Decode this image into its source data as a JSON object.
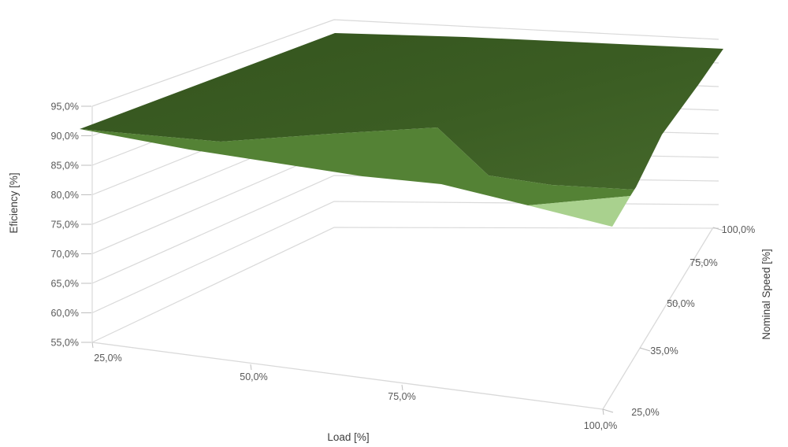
{
  "chart_data": {
    "type": "surface",
    "description": "3D surface chart of motor efficiency versus load and nominal speed",
    "value_axis": {
      "title": "Eficiency [%]",
      "ticks": [
        "55,0%",
        "60,0%",
        "65,0%",
        "70,0%",
        "75,0%",
        "80,0%",
        "85,0%",
        "90,0%",
        "95,0%"
      ],
      "min": 55,
      "max": 95,
      "major_unit": 5
    },
    "load_axis": {
      "title": "Load [%]",
      "ticks": [
        "25,0%",
        "50,0%",
        "75,0%",
        "100,0%"
      ],
      "values_pct": [
        25,
        50,
        75,
        100
      ]
    },
    "speed_axis": {
      "title": "Nominal Speed [%]",
      "ticks": [
        "25,0%",
        "35,0%",
        "50,0%",
        "75,0%",
        "100,0%"
      ],
      "values_pct": [
        25,
        35,
        50,
        75,
        100
      ]
    },
    "series": {
      "rows_are": "speed_pct",
      "cols_are": "load_pct",
      "efficiency_pct": [
        {
          "speed": 25,
          "values": [
            91.0,
            88.5,
            85.5,
            80.5
          ]
        },
        {
          "speed": 35,
          "values": [
            91.5,
            90.5,
            88.5,
            85.5
          ]
        },
        {
          "speed": 50,
          "values": [
            92.0,
            91.5,
            90.5,
            88.5
          ]
        },
        {
          "speed": 75,
          "values": [
            92.5,
            92.5,
            92.0,
            91.0
          ]
        },
        {
          "speed": 100,
          "values": [
            93.0,
            93.5,
            93.5,
            93.0
          ]
        }
      ]
    },
    "bands": [
      {
        "range": "90,0% - 95,0%",
        "color": "#3A5B22"
      },
      {
        "range": "85,0% - 90,0%",
        "color": "#548235"
      },
      {
        "range": "80,0% - 85,0%",
        "color": "#A9D18E"
      }
    ],
    "grid": {
      "on": true,
      "color": "#D9D9D9"
    },
    "label_color": "#595959",
    "legend_position": "none"
  }
}
